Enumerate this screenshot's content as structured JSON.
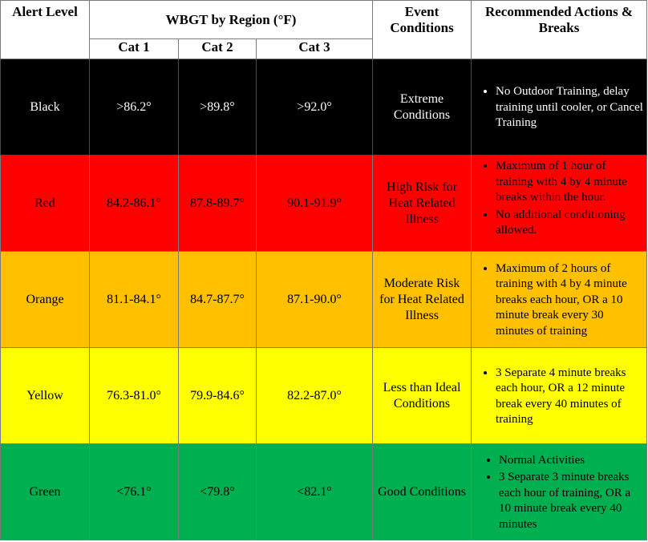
{
  "header": {
    "alert_level": "Alert Level",
    "wbgt": "WBGT by Region (°F)",
    "event_conditions": "Event Conditions",
    "recommended": "Recommended Actions & Breaks",
    "cat1": "Cat 1",
    "cat2": "Cat 2",
    "cat3": "Cat 3"
  },
  "rows": [
    {
      "level": "Black",
      "cat1": ">86.2°",
      "cat2": ">89.8°",
      "cat3": ">92.0°",
      "condition": "Extreme Conditions",
      "actions": [
        "No Outdoor Training, delay training until cooler, or Cancel Training"
      ],
      "color": "#000000"
    },
    {
      "level": "Red",
      "cat1": "84.2-86.1°",
      "cat2": "87.8-89.7°",
      "cat3": "90.1-91.9°",
      "condition": "High Risk for Heat Related Illness",
      "actions": [
        "Maximum of 1 hour of training with 4 by 4 minute breaks within the hour.",
        "No additional conditioning allowed."
      ],
      "color": "#ff0000"
    },
    {
      "level": "Orange",
      "cat1": "81.1-84.1°",
      "cat2": "84.7-87.7°",
      "cat3": "87.1-90.0°",
      "condition": "Moderate Risk for Heat Related Illness",
      "actions": [
        "Maximum of 2 hours of training with 4 by 4 minute breaks each hour, OR a 10 minute break every 30 minutes of training"
      ],
      "color": "#ffc000"
    },
    {
      "level": "Yellow",
      "cat1": "76.3-81.0°",
      "cat2": "79.9-84.6°",
      "cat3": "82.2-87.0°",
      "condition": "Less than Ideal Conditions",
      "actions": [
        "3 Separate 4 minute breaks each hour, OR a 12 minute break every 40 minutes of training"
      ],
      "color": "#ffff00"
    },
    {
      "level": "Green",
      "cat1": "<76.1°",
      "cat2": "<79.8°",
      "cat3": "<82.1°",
      "condition": "Good Conditions",
      "actions": [
        "Normal Activities",
        "3 Separate 3 minute breaks each hour of training, OR a 10 minute break every 40 minutes"
      ],
      "color": "#00b050"
    }
  ]
}
